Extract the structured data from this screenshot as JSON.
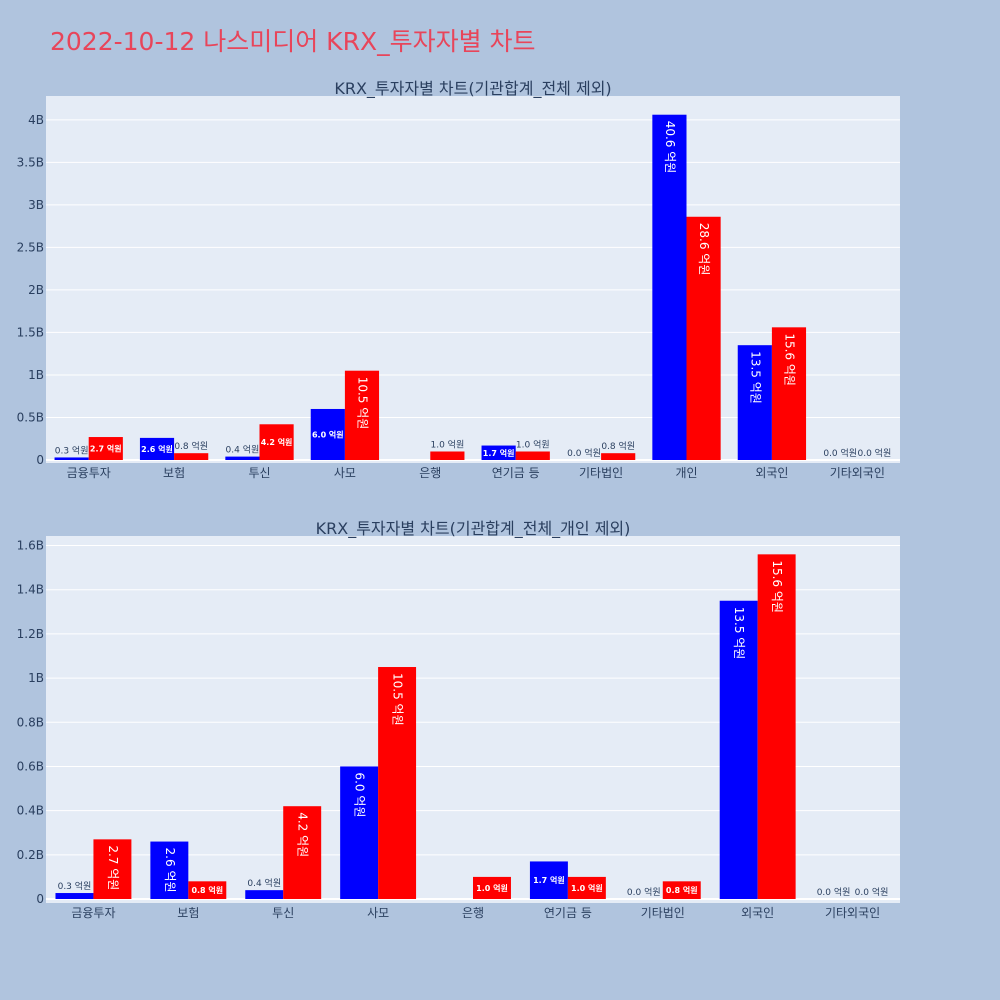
{
  "page_title": "2022-10-12 나스미디어 KRX_투자자별 차트",
  "colors": {
    "buy": "#0000ff",
    "sell": "#ff0000",
    "background": "#b0c4de",
    "plot_bg": "#e5ecf6",
    "title": "#e8455a"
  },
  "chart_data": [
    {
      "type": "bar",
      "title": "KRX_투자자별 차트(기관합계_전체 제외)",
      "categories": [
        "금융투자",
        "보험",
        "투신",
        "사모",
        "은행",
        "연기금 등",
        "기타법인",
        "개인",
        "외국인",
        "기타외국인"
      ],
      "series": [
        {
          "values": [
            0.03,
            0.26,
            0.04,
            0.6,
            0.0,
            0.17,
            0.0,
            4.06,
            1.35,
            0.0
          ],
          "labels": [
            "0.3 억원",
            "2.6 억원",
            "0.4 억원",
            "6.0 억원",
            "",
            "1.7 억원",
            "0.0 억원",
            "40.6 억원",
            "13.5 억원",
            "0.0 억원"
          ]
        },
        {
          "values": [
            0.27,
            0.08,
            0.42,
            1.05,
            0.1,
            0.1,
            0.08,
            2.86,
            1.56,
            0.0
          ],
          "labels": [
            "2.7 억원",
            "0.8 억원",
            "4.2 억원",
            "10.5 억원",
            "1.0 억원",
            "1.0 억원",
            "0.8 억원",
            "28.6 억원",
            "15.6 억원",
            "0.0 억원"
          ]
        }
      ],
      "yticks": [
        "0",
        "0.5B",
        "1B",
        "1.5B",
        "2B",
        "2.5B",
        "3B",
        "3.5B",
        "4B"
      ],
      "ytick_values": [
        0,
        0.5,
        1,
        1.5,
        2,
        2.5,
        3,
        3.5,
        4
      ],
      "ylim": [
        0,
        4.28
      ]
    },
    {
      "type": "bar",
      "title": "KRX_투자자별 차트(기관합계_전체_개인 제외)",
      "categories": [
        "금융투자",
        "보험",
        "투신",
        "사모",
        "은행",
        "연기금 등",
        "기타법인",
        "외국인",
        "기타외국인"
      ],
      "series": [
        {
          "values": [
            0.027,
            0.26,
            0.04,
            0.6,
            0.0,
            0.17,
            0.0,
            1.35,
            0.0
          ],
          "labels": [
            "0.3 억원",
            "2.6 억원",
            "0.4 억원",
            "6.0 억원",
            "",
            "1.7 억원",
            "0.0 억원",
            "13.5 억원",
            "0.0 억원"
          ]
        },
        {
          "values": [
            0.27,
            0.08,
            0.42,
            1.05,
            0.1,
            0.1,
            0.08,
            1.56,
            0.0
          ],
          "labels": [
            "2.7 억원",
            "0.8 억원",
            "4.2 억원",
            "10.5 억원",
            "1.0 억원",
            "1.0 억원",
            "0.8 억원",
            "15.6 억원",
            "0.0 억원"
          ]
        }
      ],
      "yticks": [
        "0",
        "0.2B",
        "0.4B",
        "0.6B",
        "0.8B",
        "1B",
        "1.2B",
        "1.4B",
        "1.6B"
      ],
      "ytick_values": [
        0,
        0.2,
        0.4,
        0.6,
        0.8,
        1.0,
        1.2,
        1.4,
        1.6
      ],
      "ylim": [
        0,
        1.643
      ]
    }
  ]
}
